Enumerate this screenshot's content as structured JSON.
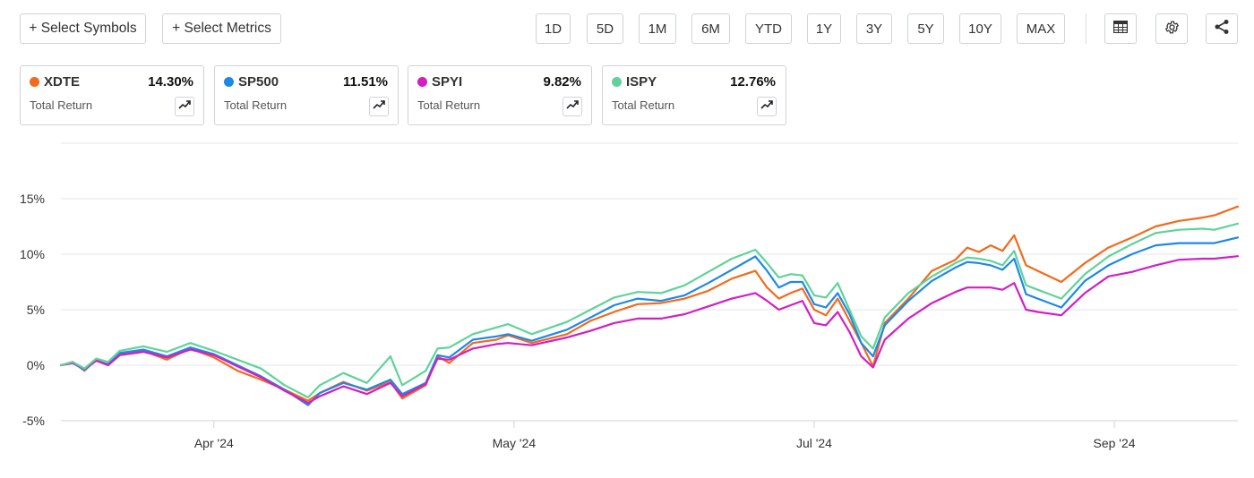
{
  "toolbar": {
    "select_symbols": "+ Select Symbols",
    "select_metrics": "+ Select Metrics",
    "ranges": [
      "1D",
      "5D",
      "1M",
      "6M",
      "YTD",
      "1Y",
      "3Y",
      "5Y",
      "10Y",
      "MAX"
    ],
    "tools": [
      "table-icon",
      "gear-icon",
      "share-icon"
    ]
  },
  "cards": [
    {
      "symbol": "XDTE",
      "value": "14.30%",
      "metric": "Total Return",
      "color": "#f26a1b"
    },
    {
      "symbol": "SP500",
      "value": "11.51%",
      "metric": "Total Return",
      "color": "#1e88e5"
    },
    {
      "symbol": "SPYI",
      "value": "9.82%",
      "metric": "Total Return",
      "color": "#d11fc4"
    },
    {
      "symbol": "ISPY",
      "value": "12.76%",
      "metric": "Total Return",
      "color": "#5fd39a"
    }
  ],
  "chart_data": {
    "type": "line",
    "ylim": [
      -5,
      20
    ],
    "yticks": [
      -5,
      0,
      5,
      10,
      15
    ],
    "ytick_labels": [
      "-5%",
      "0%",
      "5%",
      "10%",
      "15%"
    ],
    "xtick_labels": [
      "Apr '24",
      "May '24",
      "Jul '24",
      "Sep '24"
    ],
    "xtick_positions": [
      0.13,
      0.385,
      0.64,
      0.895
    ],
    "grid": true,
    "series": [
      {
        "name": "XDTE",
        "color": "#f26a1b",
        "x": [
          0,
          0.01,
          0.02,
          0.03,
          0.04,
          0.05,
          0.07,
          0.09,
          0.11,
          0.13,
          0.15,
          0.17,
          0.19,
          0.21,
          0.22,
          0.24,
          0.26,
          0.28,
          0.29,
          0.31,
          0.32,
          0.33,
          0.35,
          0.37,
          0.38,
          0.4,
          0.43,
          0.45,
          0.47,
          0.49,
          0.51,
          0.53,
          0.55,
          0.57,
          0.59,
          0.6,
          0.61,
          0.62,
          0.63,
          0.64,
          0.65,
          0.66,
          0.67,
          0.68,
          0.69,
          0.7,
          0.72,
          0.74,
          0.76,
          0.77,
          0.78,
          0.79,
          0.8,
          0.81,
          0.82,
          0.83,
          0.85,
          0.87,
          0.89,
          0.91,
          0.93,
          0.95,
          0.97,
          0.98,
          1.0
        ],
        "values": [
          0,
          0.3,
          -0.5,
          0.5,
          0,
          1,
          1.3,
          0.5,
          1.5,
          0.7,
          -0.5,
          -1.3,
          -2.2,
          -3.2,
          -2.5,
          -1.5,
          -2.3,
          -1.5,
          -3,
          -1.8,
          0.8,
          0.2,
          2,
          2.3,
          2.7,
          2,
          2.8,
          4,
          4.8,
          5.5,
          5.6,
          6,
          6.7,
          7.8,
          8.5,
          7,
          6,
          6.5,
          6.9,
          5,
          4.5,
          6,
          4,
          2,
          -0.1,
          3.8,
          6,
          8.5,
          9.5,
          10.6,
          10.2,
          10.8,
          10.3,
          11.7,
          9,
          8.5,
          7.5,
          9.2,
          10.6,
          11.5,
          12.5,
          13,
          13.3,
          13.5,
          14.3
        ]
      },
      {
        "name": "SP500",
        "color": "#1e88e5",
        "x": [
          0,
          0.01,
          0.02,
          0.03,
          0.04,
          0.05,
          0.07,
          0.09,
          0.11,
          0.13,
          0.15,
          0.17,
          0.19,
          0.21,
          0.22,
          0.24,
          0.26,
          0.28,
          0.29,
          0.31,
          0.32,
          0.33,
          0.35,
          0.37,
          0.38,
          0.4,
          0.43,
          0.45,
          0.47,
          0.49,
          0.51,
          0.53,
          0.55,
          0.57,
          0.59,
          0.6,
          0.61,
          0.62,
          0.63,
          0.64,
          0.65,
          0.66,
          0.67,
          0.68,
          0.69,
          0.7,
          0.72,
          0.74,
          0.76,
          0.77,
          0.78,
          0.79,
          0.8,
          0.81,
          0.82,
          0.83,
          0.85,
          0.87,
          0.89,
          0.91,
          0.93,
          0.95,
          0.97,
          0.98,
          1.0
        ],
        "values": [
          0,
          0.2,
          -0.4,
          0.4,
          0.1,
          1.1,
          1.4,
          0.8,
          1.6,
          1.0,
          0,
          -1,
          -2.2,
          -3.6,
          -2.5,
          -1.6,
          -2.2,
          -1.3,
          -2.6,
          -1.6,
          0.9,
          0.7,
          2.3,
          2.6,
          2.8,
          2.2,
          3.2,
          4.3,
          5.4,
          6.0,
          5.8,
          6.3,
          7.4,
          8.6,
          9.8,
          8.5,
          7,
          7.5,
          7.5,
          5.5,
          5.2,
          6.5,
          4.6,
          2,
          0.8,
          3.6,
          5.8,
          7.6,
          8.8,
          9.3,
          9.2,
          9.0,
          8.6,
          9.6,
          6.4,
          6,
          5.2,
          7.6,
          9.0,
          10,
          10.8,
          11,
          11.0,
          11.0,
          11.51
        ]
      },
      {
        "name": "SPYI",
        "color": "#d11fc4",
        "x": [
          0,
          0.01,
          0.02,
          0.03,
          0.04,
          0.05,
          0.07,
          0.09,
          0.11,
          0.13,
          0.15,
          0.17,
          0.19,
          0.21,
          0.22,
          0.24,
          0.26,
          0.28,
          0.29,
          0.31,
          0.32,
          0.33,
          0.35,
          0.37,
          0.38,
          0.4,
          0.43,
          0.45,
          0.47,
          0.49,
          0.51,
          0.53,
          0.55,
          0.57,
          0.59,
          0.6,
          0.61,
          0.62,
          0.63,
          0.64,
          0.65,
          0.66,
          0.67,
          0.68,
          0.69,
          0.7,
          0.72,
          0.74,
          0.76,
          0.77,
          0.78,
          0.79,
          0.8,
          0.81,
          0.82,
          0.83,
          0.85,
          0.87,
          0.89,
          0.91,
          0.93,
          0.95,
          0.97,
          0.98,
          1.0
        ],
        "values": [
          0,
          0.2,
          -0.3,
          0.4,
          0,
          0.9,
          1.2,
          0.7,
          1.4,
          0.9,
          -0.1,
          -1.1,
          -2.3,
          -3.4,
          -2.8,
          -1.9,
          -2.6,
          -1.6,
          -2.8,
          -1.7,
          0.6,
          0.5,
          1.5,
          1.9,
          2.0,
          1.8,
          2.5,
          3.1,
          3.8,
          4.2,
          4.2,
          4.6,
          5.3,
          6.0,
          6.5,
          5.8,
          5.0,
          5.4,
          5.8,
          3.8,
          3.6,
          4.8,
          3.0,
          0.8,
          -0.2,
          2.3,
          4.2,
          5.6,
          6.6,
          7.0,
          7.0,
          7.0,
          6.8,
          7.4,
          5.0,
          4.8,
          4.5,
          6.5,
          8.0,
          8.4,
          9.0,
          9.5,
          9.6,
          9.6,
          9.82
        ]
      },
      {
        "name": "ISPY",
        "color": "#5fd39a",
        "x": [
          0,
          0.01,
          0.02,
          0.03,
          0.04,
          0.05,
          0.07,
          0.09,
          0.11,
          0.13,
          0.15,
          0.17,
          0.19,
          0.21,
          0.22,
          0.24,
          0.26,
          0.28,
          0.29,
          0.31,
          0.32,
          0.33,
          0.35,
          0.37,
          0.38,
          0.4,
          0.43,
          0.45,
          0.47,
          0.49,
          0.51,
          0.53,
          0.55,
          0.57,
          0.59,
          0.6,
          0.61,
          0.62,
          0.63,
          0.64,
          0.65,
          0.66,
          0.67,
          0.68,
          0.69,
          0.7,
          0.72,
          0.74,
          0.76,
          0.77,
          0.78,
          0.79,
          0.8,
          0.81,
          0.82,
          0.83,
          0.85,
          0.87,
          0.89,
          0.91,
          0.93,
          0.95,
          0.97,
          0.98,
          1.0
        ],
        "values": [
          0,
          0.3,
          -0.3,
          0.6,
          0.3,
          1.3,
          1.7,
          1.2,
          2.0,
          1.3,
          0.5,
          -0.3,
          -1.8,
          -2.9,
          -1.8,
          -0.7,
          -1.6,
          0.8,
          -1.8,
          -0.5,
          1.5,
          1.6,
          2.8,
          3.4,
          3.7,
          2.8,
          3.9,
          5.0,
          6.1,
          6.6,
          6.5,
          7.2,
          8.4,
          9.6,
          10.4,
          9.2,
          7.9,
          8.2,
          8.1,
          6.3,
          6.1,
          7.4,
          5.0,
          2.6,
          1.5,
          4.3,
          6.5,
          8.0,
          9.2,
          9.7,
          9.6,
          9.4,
          9.0,
          10.3,
          7.2,
          6.8,
          6.0,
          8.2,
          9.8,
          10.9,
          11.9,
          12.2,
          12.3,
          12.2,
          12.76
        ]
      }
    ]
  }
}
